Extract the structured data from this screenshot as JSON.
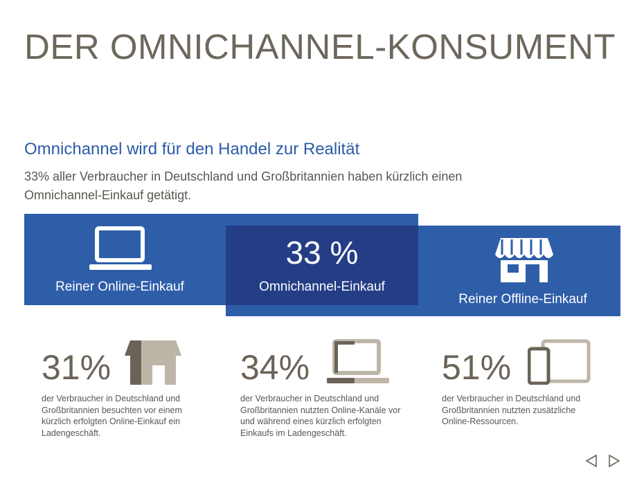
{
  "header": {
    "title": "DER OMNICHANNEL-KONSUMENT"
  },
  "intro": {
    "heading": "Omnichannel wird für den Handel zur Realität",
    "text": "33% aller Verbraucher in Deutschland und Großbritannien haben kürzlich einen Omnichannel-Einkauf getätigt."
  },
  "venn": {
    "online": {
      "label": "Reiner Online-Einkauf"
    },
    "overlap": {
      "value": "33 %",
      "label": "Omnichannel-Einkauf"
    },
    "offline": {
      "label": "Reiner Offline-Einkauf"
    }
  },
  "stats": [
    {
      "value": "31%",
      "text": "der Verbraucher in Deutschland und Großbritannien besuchten vor einem kürzlich erfolgten Online-Einkauf ein Ladengeschäft."
    },
    {
      "value": "34%",
      "text": "der Verbraucher in Deutschland und Großbritannien nutzten Online-Kanäle vor und während eines kürzlich erfolgten Einkaufs im Ladengeschäft."
    },
    {
      "value": "51%",
      "text": "der Verbraucher in Deutschland und Großbritannien nutzten zusätzliche Online-Ressourcen."
    }
  ]
}
